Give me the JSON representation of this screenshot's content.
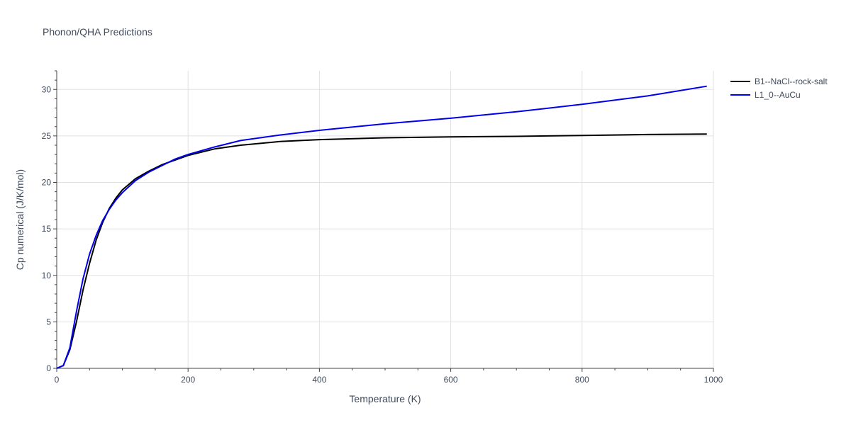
{
  "chart_data": {
    "type": "line",
    "title": "Phonon/QHA Predictions",
    "xlabel": "Temperature (K)",
    "ylabel": "Cp numerical (J/K/mol)",
    "xlim": [
      0,
      1000
    ],
    "ylim": [
      0,
      32
    ],
    "xticks": [
      0,
      200,
      400,
      600,
      800,
      1000
    ],
    "xtick_labels": [
      "0",
      "200",
      "400",
      "600",
      "800",
      "1000"
    ],
    "yticks": [
      0,
      5,
      10,
      15,
      20,
      25,
      30
    ],
    "ytick_labels": [
      "0",
      "5",
      "10",
      "15",
      "20",
      "25",
      "30"
    ],
    "grid": true,
    "legend_position": "top-right",
    "series": [
      {
        "name": "B1--NaCl--rock-salt",
        "color": "#000000",
        "x": [
          0,
          10,
          20,
          30,
          40,
          50,
          60,
          70,
          80,
          90,
          100,
          120,
          140,
          160,
          180,
          200,
          240,
          280,
          340,
          400,
          500,
          600,
          700,
          800,
          900,
          990
        ],
        "y": [
          0,
          0.3,
          2.0,
          5.0,
          8.4,
          11.3,
          13.8,
          15.7,
          17.2,
          18.3,
          19.2,
          20.4,
          21.2,
          21.9,
          22.4,
          22.9,
          23.6,
          24.0,
          24.4,
          24.6,
          24.8,
          24.9,
          24.95,
          25.05,
          25.15,
          25.2
        ]
      },
      {
        "name": "L1_0--AuCu",
        "color": "#0000ee",
        "x": [
          0,
          10,
          20,
          30,
          40,
          50,
          60,
          70,
          80,
          90,
          100,
          120,
          140,
          160,
          180,
          200,
          240,
          280,
          340,
          400,
          500,
          600,
          700,
          800,
          900,
          990
        ],
        "y": [
          0,
          0.3,
          2.2,
          6.1,
          9.6,
          12.3,
          14.3,
          15.9,
          17.1,
          18.1,
          18.9,
          20.2,
          21.1,
          21.8,
          22.5,
          23.0,
          23.8,
          24.5,
          25.1,
          25.6,
          26.3,
          26.9,
          27.6,
          28.4,
          29.3,
          30.35
        ]
      }
    ]
  }
}
